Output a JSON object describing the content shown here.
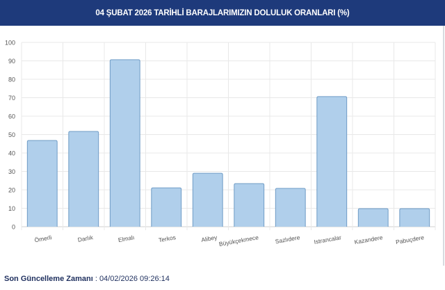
{
  "header": {
    "title": "04 ŞUBAT 2026 TARİHLİ BARAJLARIMIZIN DOLULUK ORANLARI (%)"
  },
  "footer": {
    "label": "Son Güncelleme Zamanı",
    "separator": " : ",
    "value": "04/02/2026 09:26:14"
  },
  "chart_data": {
    "type": "bar",
    "title": "04 ŞUBAT 2026 TARİHLİ BARAJLARIMIZIN DOLULUK ORANLARI (%)",
    "categories": [
      "Ömerli",
      "Darlık",
      "Elmalı",
      "Terkos",
      "Alibey",
      "Büyükçekmece",
      "Sazlıdere",
      "Istrancalar",
      "Kazandere",
      "Pabuçdere"
    ],
    "values": [
      46.8,
      51.7,
      90.6,
      21.1,
      29.0,
      23.4,
      20.8,
      70.6,
      9.8,
      9.8
    ],
    "ylim": [
      0,
      100
    ],
    "yticks": [
      0,
      10,
      20,
      30,
      40,
      50,
      60,
      70,
      80,
      90,
      100
    ],
    "grid": true,
    "bar_fill": "#b0cfeb",
    "bar_stroke": "#6f9cc6",
    "xlabel": "",
    "ylabel": ""
  }
}
